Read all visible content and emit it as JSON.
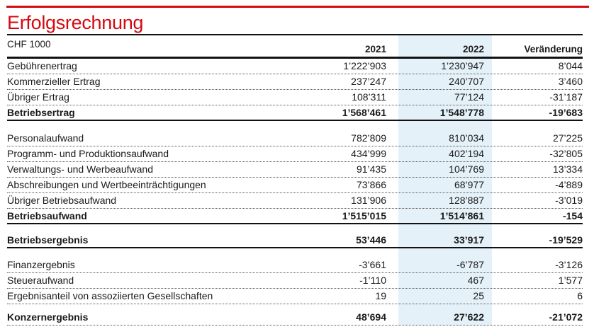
{
  "title": "Erfolgsrechnung",
  "unit_label": "CHF 1000",
  "colors": {
    "accent_red": "#d40a10",
    "highlight_blue": "#e4f1f9"
  },
  "table": {
    "columns": [
      "2021",
      "2022",
      "Veränderung"
    ],
    "highlighted_column": "2022",
    "rows": [
      {
        "style": "normal",
        "label": "Gebührenertrag",
        "v2021": "1’222’903",
        "v2022": "1’230’947",
        "change": "8’044"
      },
      {
        "style": "normal",
        "label": "Kommerzieller Ertrag",
        "v2021": "237’247",
        "v2022": "240’707",
        "change": "3’460"
      },
      {
        "style": "normal",
        "label": "Übriger Ertrag",
        "v2021": "108’311",
        "v2022": "77’124",
        "change": "-31’187"
      },
      {
        "style": "total",
        "label": "Betriebsertrag",
        "v2021": "1’568’461",
        "v2022": "1’548’778",
        "change": "-19’683"
      },
      {
        "style": "spacer",
        "h": 14
      },
      {
        "style": "normal",
        "label": "Personalaufwand",
        "v2021": "782’809",
        "v2022": "810’034",
        "change": "27’225"
      },
      {
        "style": "normal",
        "label": "Programm- und Produktionsaufwand",
        "v2021": "434’999",
        "v2022": "402’194",
        "change": "-32’805"
      },
      {
        "style": "normal",
        "label": "Verwaltungs- und Werbeaufwand",
        "v2021": "91’435",
        "v2022": "104’769",
        "change": "13’334"
      },
      {
        "style": "normal",
        "label": "Abschreibungen und Wertbeeinträchtigungen",
        "v2021": "73’866",
        "v2022": "68’977",
        "change": "-4’889"
      },
      {
        "style": "normal",
        "label": "Übriger Betriebsaufwand",
        "v2021": "131’906",
        "v2022": "128’887",
        "change": "-3’019"
      },
      {
        "style": "total",
        "label": "Betriebsaufwand",
        "v2021": "1’515’015",
        "v2022": "1’514’861",
        "change": "-154"
      },
      {
        "style": "spacer",
        "h": 12
      },
      {
        "style": "total",
        "label": "Betriebsergebnis",
        "v2021": "53’446",
        "v2022": "33’917",
        "change": "-19’529"
      },
      {
        "style": "spacer",
        "h": 13
      },
      {
        "style": "normal",
        "label": "Finanzergebnis",
        "v2021": "-3’661",
        "v2022": "-6’787",
        "change": "-3’126"
      },
      {
        "style": "normal",
        "label": "Steueraufwand",
        "v2021": "-1’110",
        "v2022": "467",
        "change": "1’577"
      },
      {
        "style": "normal",
        "label": "Ergebnisanteil von assoziierten Gesellschaften",
        "v2021": "19",
        "v2022": "25",
        "change": "6"
      },
      {
        "style": "spacer",
        "h": 8
      },
      {
        "style": "total-dotted",
        "label": "Konzernergebnis",
        "v2021": "48’694",
        "v2022": "27’622",
        "change": "-21’072"
      }
    ]
  }
}
